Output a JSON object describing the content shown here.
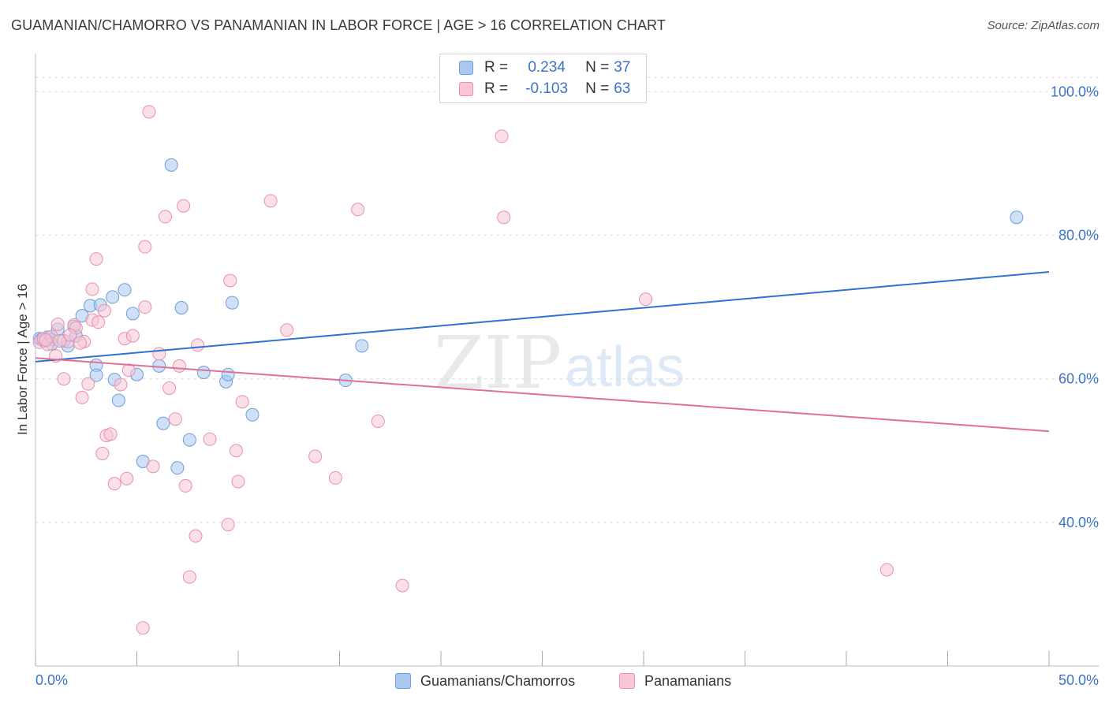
{
  "title": "GUAMANIAN/CHAMORRO VS PANAMANIAN IN LABOR FORCE | AGE > 16 CORRELATION CHART",
  "source": "Source: ZipAtlas.com",
  "watermark": {
    "zip": "ZIP",
    "atlas": "atlas"
  },
  "legend": {
    "rows": [
      {
        "r_key": "R =",
        "r_value": "0.234",
        "n_key": "N =",
        "n_value": "37",
        "color": "#aac8f0",
        "border": "#6a9fdc"
      },
      {
        "r_key": "R =",
        "r_value": "-0.103",
        "n_key": "N =",
        "n_value": "63",
        "color": "#f8c6d6",
        "border": "#e890ad"
      }
    ]
  },
  "bottom_legend": [
    {
      "label": "Guamanians/Chamorros",
      "color": "#aac8f0",
      "border": "#6a9fdc"
    },
    {
      "label": "Panamanians",
      "color": "#f8c6d6",
      "border": "#e890ad"
    }
  ],
  "chart_data": {
    "type": "scatter",
    "title": "GUAMANIAN/CHAMORRO VS PANAMANIAN IN LABOR FORCE | AGE > 16 CORRELATION CHART",
    "xlabel": "",
    "ylabel": "In Labor Force | Age > 16",
    "xlim": [
      0,
      50
    ],
    "ylim": [
      20,
      104
    ],
    "x_tick_labels": [
      "0.0%",
      "50.0%"
    ],
    "y_ticks": [
      40,
      60,
      80,
      100
    ],
    "y_tick_labels": [
      "40.0%",
      "60.0%",
      "80.0%",
      "100.0%"
    ],
    "grid": true,
    "legend_position": "top-center",
    "series": [
      {
        "name": "Guamanians/Chamorros",
        "color": "#6a9fdc",
        "fill": "#aac8f0",
        "line_color": "#2f72d4",
        "trend": [
          [
            0,
            62.4
          ],
          [
            50,
            74.9
          ]
        ],
        "points": [
          [
            0.2,
            65.6
          ],
          [
            0.4,
            65.3
          ],
          [
            0.6,
            65.8
          ],
          [
            0.8,
            65.5
          ],
          [
            0.8,
            64.9
          ],
          [
            1.1,
            66.9
          ],
          [
            1.4,
            65.3
          ],
          [
            1.6,
            64.6
          ],
          [
            1.9,
            67.3
          ],
          [
            2.0,
            66.0
          ],
          [
            2.3,
            68.8
          ],
          [
            2.7,
            70.2
          ],
          [
            3.0,
            61.9
          ],
          [
            3.0,
            60.5
          ],
          [
            3.2,
            70.3
          ],
          [
            3.8,
            71.4
          ],
          [
            3.9,
            59.9
          ],
          [
            4.1,
            57.0
          ],
          [
            4.4,
            72.4
          ],
          [
            4.8,
            69.1
          ],
          [
            5.0,
            60.6
          ],
          [
            5.3,
            48.5
          ],
          [
            6.1,
            61.8
          ],
          [
            6.3,
            53.8
          ],
          [
            6.7,
            89.8
          ],
          [
            7.0,
            47.6
          ],
          [
            7.2,
            69.9
          ],
          [
            7.6,
            51.5
          ],
          [
            8.3,
            60.9
          ],
          [
            9.4,
            59.6
          ],
          [
            9.5,
            60.6
          ],
          [
            9.7,
            70.6
          ],
          [
            10.7,
            55.0
          ],
          [
            15.3,
            59.8
          ],
          [
            16.1,
            64.6
          ],
          [
            48.4,
            82.5
          ],
          [
            0.3,
            65.5
          ]
        ]
      },
      {
        "name": "Panamanians",
        "color": "#e890ad",
        "fill": "#f8c6d6",
        "line_color": "#e0709a",
        "trend": [
          [
            0,
            62.9
          ],
          [
            50,
            52.7
          ]
        ],
        "points": [
          [
            0.2,
            65.1
          ],
          [
            0.4,
            65.6
          ],
          [
            0.6,
            64.8
          ],
          [
            0.8,
            65.9
          ],
          [
            1.0,
            63.2
          ],
          [
            1.1,
            67.6
          ],
          [
            1.4,
            60.0
          ],
          [
            1.6,
            65.2
          ],
          [
            1.9,
            67.5
          ],
          [
            2.0,
            67.1
          ],
          [
            2.3,
            57.4
          ],
          [
            2.4,
            65.2
          ],
          [
            2.6,
            59.3
          ],
          [
            2.8,
            68.2
          ],
          [
            2.8,
            72.5
          ],
          [
            3.0,
            76.7
          ],
          [
            3.1,
            67.9
          ],
          [
            3.3,
            49.6
          ],
          [
            3.4,
            69.5
          ],
          [
            3.5,
            52.1
          ],
          [
            3.7,
            52.3
          ],
          [
            3.9,
            45.4
          ],
          [
            4.2,
            59.2
          ],
          [
            4.4,
            65.6
          ],
          [
            4.5,
            46.1
          ],
          [
            4.6,
            61.2
          ],
          [
            4.8,
            66.0
          ],
          [
            5.3,
            25.3
          ],
          [
            5.4,
            78.4
          ],
          [
            5.4,
            70.0
          ],
          [
            5.8,
            47.8
          ],
          [
            6.1,
            63.5
          ],
          [
            6.4,
            82.6
          ],
          [
            6.6,
            58.7
          ],
          [
            6.9,
            54.4
          ],
          [
            7.1,
            61.8
          ],
          [
            7.3,
            84.1
          ],
          [
            7.4,
            45.1
          ],
          [
            7.6,
            32.4
          ],
          [
            7.9,
            38.1
          ],
          [
            8.0,
            64.7
          ],
          [
            8.6,
            51.6
          ],
          [
            9.5,
            39.7
          ],
          [
            9.6,
            73.7
          ],
          [
            9.9,
            50.0
          ],
          [
            10.0,
            45.7
          ],
          [
            10.2,
            56.8
          ],
          [
            11.6,
            84.8
          ],
          [
            12.4,
            66.8
          ],
          [
            13.8,
            49.2
          ],
          [
            14.8,
            46.2
          ],
          [
            15.9,
            83.6
          ],
          [
            16.9,
            54.1
          ],
          [
            18.1,
            31.2
          ],
          [
            23.0,
            93.8
          ],
          [
            23.1,
            82.5
          ],
          [
            30.1,
            71.1
          ],
          [
            42.0,
            33.4
          ],
          [
            5.6,
            97.2
          ],
          [
            1.2,
            65.3
          ],
          [
            0.5,
            65.4
          ],
          [
            2.2,
            65.0
          ],
          [
            1.7,
            66.1
          ]
        ]
      }
    ]
  }
}
